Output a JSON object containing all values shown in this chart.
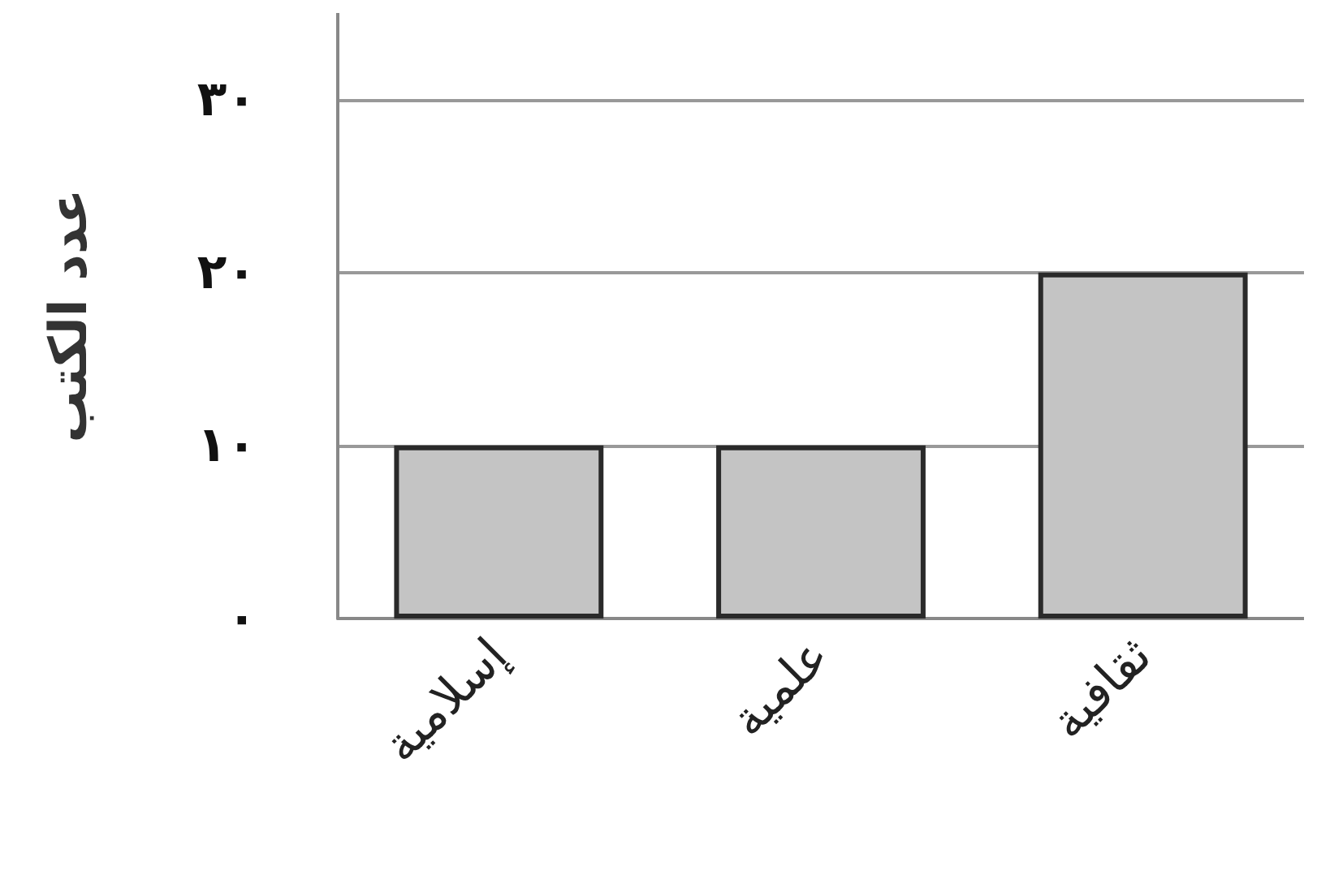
{
  "chart_data": {
    "type": "bar",
    "ylabel": "عدد الكتب",
    "categories": [
      "إسلامية",
      "علمية",
      "ثقافية"
    ],
    "values": [
      10,
      10,
      20
    ],
    "color": "#c4c4c4",
    "ylim": [
      0,
      35
    ],
    "yticks": [
      {
        "value": 0,
        "label": "٠"
      },
      {
        "value": 10,
        "label": "١٠"
      },
      {
        "value": 20,
        "label": "٢٠"
      },
      {
        "value": 30,
        "label": "٣٠"
      }
    ],
    "grid": "y"
  }
}
